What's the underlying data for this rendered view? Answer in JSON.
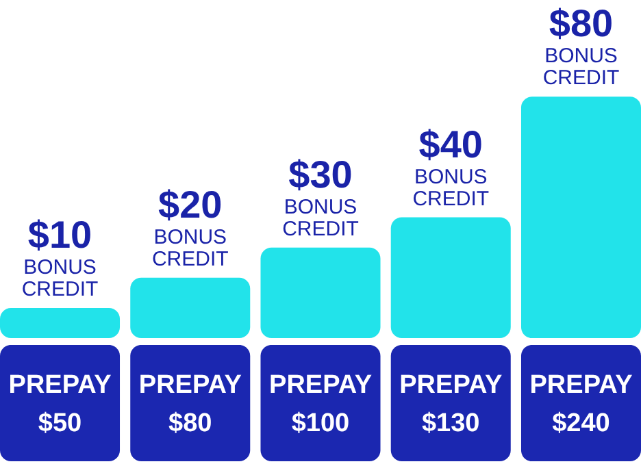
{
  "chart_data": {
    "type": "bar",
    "categories": [
      "PREPAY $50",
      "PREPAY $80",
      "PREPAY $100",
      "PREPAY $130",
      "PREPAY $240"
    ],
    "values": [
      10,
      20,
      30,
      40,
      80
    ],
    "value_labels": [
      "$10",
      "$20",
      "$30",
      "$40",
      "$80"
    ],
    "annotations": [
      {
        "text": "BONUS CREDIT",
        "x": "PREPAY $50",
        "y": 10
      },
      {
        "text": "BONUS CREDIT",
        "x": "PREPAY $80",
        "y": 20
      },
      {
        "text": "BONUS CREDIT",
        "x": "PREPAY $100",
        "y": 30
      },
      {
        "text": "BONUS CREDIT",
        "x": "PREPAY $130",
        "y": 40
      },
      {
        "text": "BONUS CREDIT",
        "x": "PREPAY $240",
        "y": 80
      }
    ],
    "color": "#22e3ea"
  }
}
